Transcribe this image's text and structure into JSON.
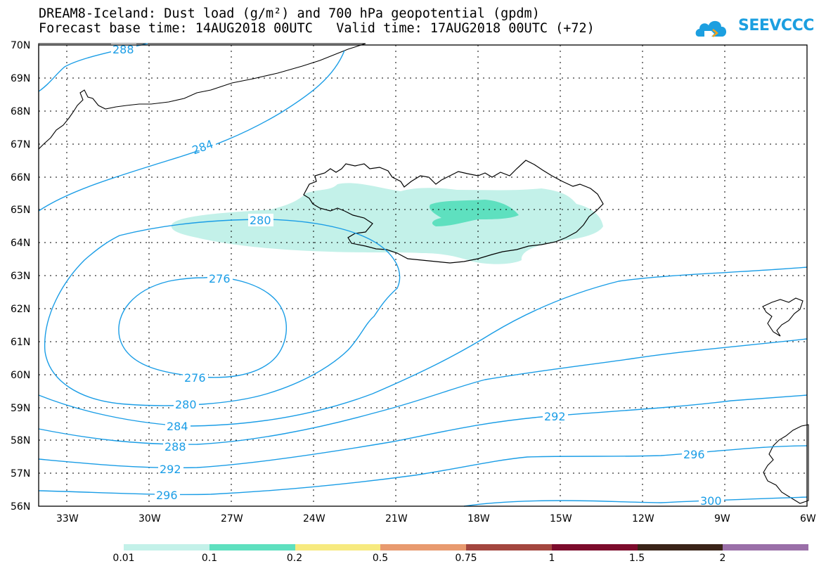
{
  "title": {
    "line1": "DREAM8-Iceland: Dust load (g/m²) and 700 hPa geopotential (gpdm)",
    "line2": "Forecast base time: 14AUG2018 00UTC   Valid time: 17AUG2018 00UTC (+72)"
  },
  "logo": {
    "text": "SEEVCCC",
    "color": "#1c9fe0"
  },
  "map": {
    "region": "Iceland",
    "lon_range": [
      -34,
      -6
    ],
    "lat_range": [
      56,
      70
    ],
    "lat_labels": [
      "70N",
      "69N",
      "68N",
      "67N",
      "66N",
      "65N",
      "64N",
      "63N",
      "62N",
      "61N",
      "60N",
      "59N",
      "58N",
      "57N",
      "56N"
    ],
    "lon_labels": [
      "33W",
      "30W",
      "27W",
      "24W",
      "21W",
      "18W",
      "15W",
      "12W",
      "9W",
      "6W"
    ],
    "grid": "dotted",
    "contour_color": "#1a9de6",
    "contour_labels": [
      "288",
      "284",
      "280",
      "276",
      "276",
      "280",
      "284",
      "288",
      "292",
      "296",
      "292",
      "296",
      "300"
    ]
  },
  "legend": {
    "colors": [
      "#c3f1e9",
      "#5ee0bf",
      "#f7ea7f",
      "#e89a6f",
      "#a3463f",
      "#7c0b2c",
      "#3a2418",
      "#9a6fa8"
    ],
    "labels": [
      "0.01",
      "0.1",
      "0.2",
      "0.5",
      "0.75",
      "1",
      "1.5",
      "2"
    ]
  }
}
